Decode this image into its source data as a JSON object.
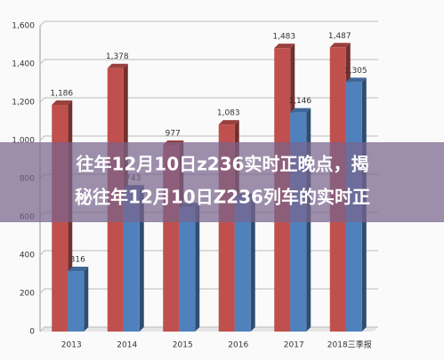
{
  "chart_data": {
    "type": "bar",
    "title": "往年12月10日z236实时正晚点，揭秘往年12月10日Z236列车的实时正",
    "categories": [
      "2013",
      "2014",
      "2015",
      "2016",
      "2017",
      "2018三季报"
    ],
    "series": [
      {
        "name": "red",
        "color": "#c0504d",
        "values": [
          1186,
          1378,
          977,
          1083,
          1483,
          1487
        ],
        "value_labels": [
          "1,186",
          "1,378",
          "977",
          "1,083",
          "1,483",
          "1,487"
        ]
      },
      {
        "name": "blue",
        "color": "#4f81bd",
        "values": [
          316,
          743,
          650,
          700,
          1146,
          1305
        ],
        "value_labels": [
          "316",
          "743",
          null,
          null,
          "1,146",
          "1,305"
        ]
      }
    ],
    "ylim": [
      0,
      1600
    ],
    "yticks": [
      0,
      200,
      400,
      600,
      800,
      {
        "value": 1000,
        "label": "1,000"
      },
      {
        "value": 1200,
        "label": "1,200"
      },
      {
        "value": 1400,
        "label": "1,400"
      },
      {
        "value": 1600,
        "label": "1,600"
      }
    ],
    "grid": true
  }
}
